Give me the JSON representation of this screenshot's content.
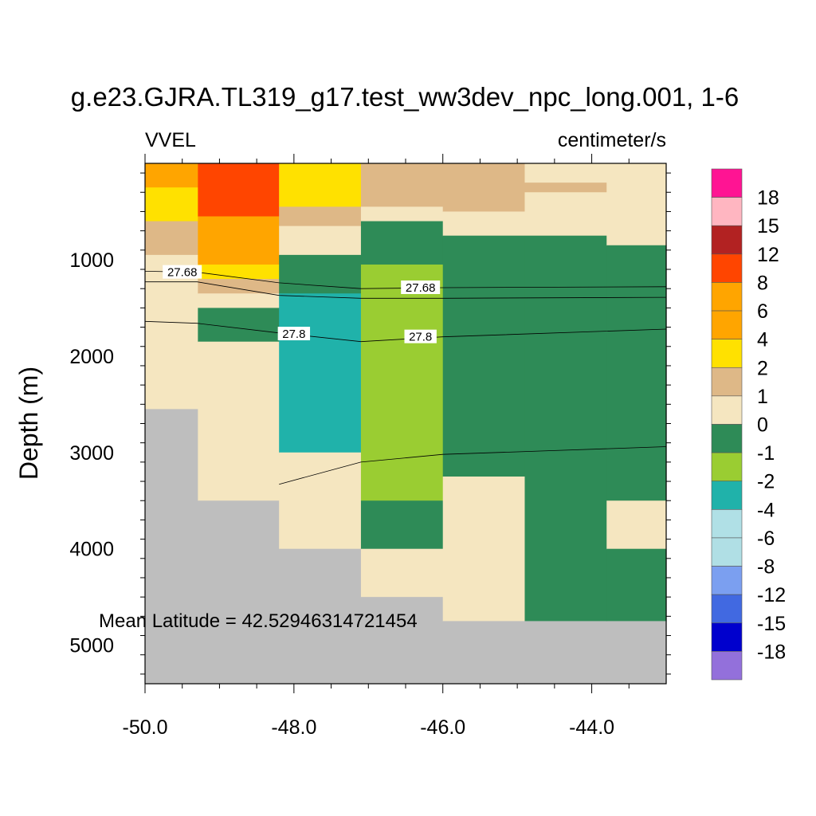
{
  "chart_data": {
    "type": "heatmap",
    "title": "g.e23.GJRA.TL319_g17.test_ww3dev_npc_long.001, 1-6",
    "left_label": "VVEL",
    "right_label": "centimeter/s",
    "xlabel": "",
    "ylabel": "Depth (m)",
    "xlim": [
      -50.0,
      -43.0
    ],
    "ylim": [
      5400,
      0
    ],
    "x_ticks": [
      -50.0,
      -48.0,
      -46.0,
      -44.0
    ],
    "x_tick_labels": [
      "-50.0",
      "-48.0",
      "-46.0",
      "-44.0"
    ],
    "y_ticks": [
      1000,
      2000,
      3000,
      4000,
      5000
    ],
    "y_tick_labels": [
      "1000",
      "2000",
      "3000",
      "4000",
      "5000"
    ],
    "annotation": "Mean Latitude = 42.52946314721454",
    "colorbar": {
      "labels": [
        "18",
        "15",
        "12",
        "8",
        "6",
        "4",
        "2",
        "1",
        "0",
        "-1",
        "-2",
        "-4",
        "-6",
        "-8",
        "-12",
        "-15",
        "-18"
      ],
      "colors": [
        "#ff1493",
        "#ffb6c1",
        "#b22222",
        "#ff4500",
        "#ffa500",
        "#ffa500",
        "#ffe100",
        "#deb887",
        "#f5e6c0",
        "#2e8b57",
        "#9acd32",
        "#20b2aa",
        "#b0e0e6",
        "#b0dfe5",
        "#7b9ff0",
        "#4169e1",
        "#0000cd",
        "#9370db"
      ]
    },
    "missing_color": "#bebebe",
    "cells": [
      {
        "x": [
          -50.0,
          -49.29
        ],
        "z": [
          0,
          250
        ],
        "c": "#ffa500"
      },
      {
        "x": [
          -50.0,
          -49.29
        ],
        "z": [
          250,
          600
        ],
        "c": "#ffe100"
      },
      {
        "x": [
          -50.0,
          -49.29
        ],
        "z": [
          600,
          950
        ],
        "c": "#deb887"
      },
      {
        "x": [
          -50.0,
          -49.29
        ],
        "z": [
          950,
          2550
        ],
        "c": "#f5e6c0"
      },
      {
        "x": [
          -50.0,
          -49.29
        ],
        "z": [
          2550,
          5400
        ],
        "c": "#bebebe"
      },
      {
        "x": [
          -49.29,
          -48.2
        ],
        "z": [
          0,
          550
        ],
        "c": "#ff4500"
      },
      {
        "x": [
          -49.29,
          -48.2
        ],
        "z": [
          550,
          1050
        ],
        "c": "#ffa500"
      },
      {
        "x": [
          -49.29,
          -48.2
        ],
        "z": [
          1050,
          1200
        ],
        "c": "#ffe100"
      },
      {
        "x": [
          -49.29,
          -48.2
        ],
        "z": [
          1200,
          1350
        ],
        "c": "#deb887"
      },
      {
        "x": [
          -49.29,
          -48.2
        ],
        "z": [
          1350,
          1500
        ],
        "c": "#f5e6c0"
      },
      {
        "x": [
          -49.29,
          -48.2
        ],
        "z": [
          1500,
          1850
        ],
        "c": "#2e8b57"
      },
      {
        "x": [
          -49.29,
          -48.2
        ],
        "z": [
          1850,
          3500
        ],
        "c": "#f5e6c0"
      },
      {
        "x": [
          -49.29,
          -48.2
        ],
        "z": [
          3500,
          5400
        ],
        "c": "#bebebe"
      },
      {
        "x": [
          -48.2,
          -47.1
        ],
        "z": [
          0,
          450
        ],
        "c": "#ffe100"
      },
      {
        "x": [
          -48.2,
          -47.1
        ],
        "z": [
          450,
          650
        ],
        "c": "#deb887"
      },
      {
        "x": [
          -48.2,
          -47.1
        ],
        "z": [
          650,
          950
        ],
        "c": "#f5e6c0"
      },
      {
        "x": [
          -48.2,
          -47.1
        ],
        "z": [
          950,
          1350
        ],
        "c": "#2e8b57"
      },
      {
        "x": [
          -48.2,
          -47.1
        ],
        "z": [
          1350,
          3000
        ],
        "c": "#20b2aa"
      },
      {
        "x": [
          -48.2,
          -47.1
        ],
        "z": [
          3000,
          4000
        ],
        "c": "#f5e6c0"
      },
      {
        "x": [
          -48.2,
          -47.1
        ],
        "z": [
          4000,
          5400
        ],
        "c": "#bebebe"
      },
      {
        "x": [
          -47.1,
          -46.0
        ],
        "z": [
          0,
          450
        ],
        "c": "#deb887"
      },
      {
        "x": [
          -47.1,
          -46.0
        ],
        "z": [
          450,
          600
        ],
        "c": "#f5e6c0"
      },
      {
        "x": [
          -47.1,
          -46.0
        ],
        "z": [
          600,
          1050
        ],
        "c": "#2e8b57"
      },
      {
        "x": [
          -47.1,
          -46.0
        ],
        "z": [
          1050,
          3500
        ],
        "c": "#9acd32"
      },
      {
        "x": [
          -47.1,
          -46.0
        ],
        "z": [
          3500,
          4000
        ],
        "c": "#2e8b57"
      },
      {
        "x": [
          -47.1,
          -46.0
        ],
        "z": [
          4000,
          4500
        ],
        "c": "#f5e6c0"
      },
      {
        "x": [
          -47.1,
          -46.0
        ],
        "z": [
          4500,
          5400
        ],
        "c": "#bebebe"
      },
      {
        "x": [
          -46.0,
          -44.9
        ],
        "z": [
          0,
          500
        ],
        "c": "#deb887"
      },
      {
        "x": [
          -46.0,
          -44.9
        ],
        "z": [
          500,
          750
        ],
        "c": "#f5e6c0"
      },
      {
        "x": [
          -46.0,
          -44.9
        ],
        "z": [
          750,
          3250
        ],
        "c": "#2e8b57"
      },
      {
        "x": [
          -46.0,
          -44.9
        ],
        "z": [
          3250,
          4750
        ],
        "c": "#f5e6c0"
      },
      {
        "x": [
          -46.0,
          -44.9
        ],
        "z": [
          4750,
          5400
        ],
        "c": "#bebebe"
      },
      {
        "x": [
          -44.9,
          -43.8
        ],
        "z": [
          0,
          200
        ],
        "c": "#f5e6c0"
      },
      {
        "x": [
          -44.9,
          -43.8
        ],
        "z": [
          200,
          300
        ],
        "c": "#deb887"
      },
      {
        "x": [
          -44.9,
          -43.8
        ],
        "z": [
          300,
          750
        ],
        "c": "#f5e6c0"
      },
      {
        "x": [
          -44.9,
          -43.8
        ],
        "z": [
          750,
          4750
        ],
        "c": "#2e8b57"
      },
      {
        "x": [
          -44.9,
          -43.8
        ],
        "z": [
          4750,
          5400
        ],
        "c": "#bebebe"
      },
      {
        "x": [
          -43.8,
          -43.0
        ],
        "z": [
          0,
          850
        ],
        "c": "#f5e6c0"
      },
      {
        "x": [
          -43.8,
          -43.0
        ],
        "z": [
          850,
          3500
        ],
        "c": "#2e8b57"
      },
      {
        "x": [
          -43.8,
          -43.0
        ],
        "z": [
          3500,
          4000
        ],
        "c": "#f5e6c0"
      },
      {
        "x": [
          -43.8,
          -43.0
        ],
        "z": [
          4000,
          4750
        ],
        "c": "#2e8b57"
      },
      {
        "x": [
          -43.8,
          -43.0
        ],
        "z": [
          4750,
          5400
        ],
        "c": "#bebebe"
      }
    ],
    "contours": [
      {
        "label": "27.68",
        "points": [
          [
            -50.0,
            1120
          ],
          [
            -49.3,
            1130
          ],
          [
            -48.2,
            1240
          ],
          [
            -47.1,
            1300
          ],
          [
            -46.0,
            1290
          ],
          [
            -43.0,
            1280
          ]
        ],
        "label_at": [
          [
            -49.5,
            1130
          ],
          [
            -46.3,
            1290
          ]
        ]
      },
      {
        "label": "",
        "points": [
          [
            -50.0,
            1230
          ],
          [
            -49.3,
            1230
          ],
          [
            -48.2,
            1370
          ],
          [
            -47.1,
            1400
          ],
          [
            -46.0,
            1400
          ],
          [
            -43.0,
            1390
          ]
        ],
        "label_at": []
      },
      {
        "label": "27.8",
        "points": [
          [
            -50.0,
            1640
          ],
          [
            -49.3,
            1660
          ],
          [
            -48.2,
            1760
          ],
          [
            -47.1,
            1850
          ],
          [
            -46.0,
            1800
          ],
          [
            -43.0,
            1720
          ]
        ],
        "label_at": [
          [
            -48.0,
            1770
          ],
          [
            -46.3,
            1800
          ]
        ]
      },
      {
        "label": "",
        "points": [
          [
            -48.2,
            3330
          ],
          [
            -47.1,
            3100
          ],
          [
            -46.0,
            3020
          ],
          [
            -44.5,
            2980
          ],
          [
            -43.0,
            2940
          ]
        ],
        "label_at": []
      }
    ]
  }
}
